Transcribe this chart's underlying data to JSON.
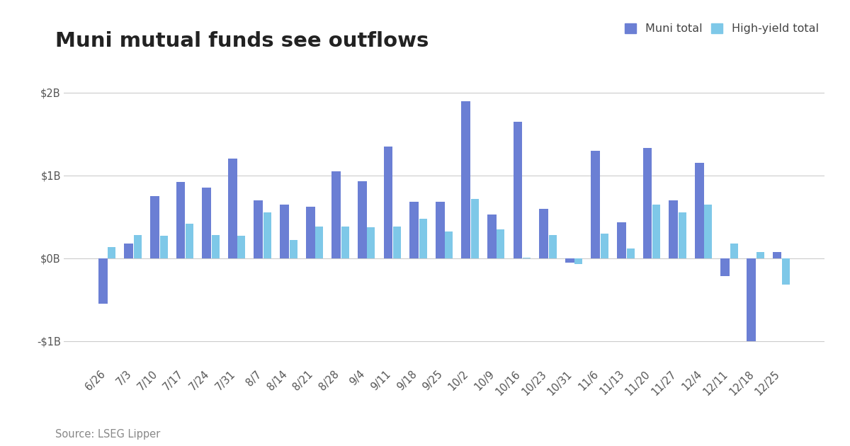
{
  "title": "Muni mutual funds see outflows",
  "source": "Source: LSEG Lipper",
  "legend_labels": [
    "Muni total",
    "High-yield total"
  ],
  "muni_color": "#6B7FD4",
  "hy_color": "#7EC8E8",
  "background_color": "#ffffff",
  "categories": [
    "6/26",
    "7/3",
    "7/10",
    "7/17",
    "7/24",
    "7/31",
    "8/7",
    "8/14",
    "8/21",
    "8/28",
    "9/4",
    "9/11",
    "9/18",
    "9/25",
    "10/2",
    "10/9",
    "10/16",
    "10/23",
    "10/31",
    "11/6",
    "11/13",
    "11/20",
    "11/27",
    "12/4",
    "12/11",
    "12/18",
    "12/25"
  ],
  "muni_values": [
    -0.55,
    0.18,
    0.75,
    0.92,
    0.85,
    1.2,
    0.7,
    0.65,
    0.62,
    1.05,
    0.93,
    1.35,
    0.68,
    0.68,
    1.9,
    0.53,
    1.65,
    0.6,
    -0.05,
    1.3,
    0.43,
    1.33,
    0.7,
    1.15,
    -0.22,
    -1.0,
    0.07
  ],
  "hy_values": [
    0.13,
    0.28,
    0.27,
    0.42,
    0.28,
    0.27,
    0.55,
    0.22,
    0.38,
    0.38,
    0.37,
    0.38,
    0.48,
    0.32,
    0.72,
    0.35,
    0.01,
    0.28,
    -0.07,
    0.3,
    0.12,
    0.65,
    0.55,
    0.65,
    0.18,
    0.07,
    -0.32
  ],
  "ylim": [
    -1.3,
    2.15
  ],
  "yticks": [
    -1.0,
    0.0,
    1.0,
    2.0
  ],
  "ytick_labels": [
    "-$1B",
    "$0B",
    "$1B",
    "$2B"
  ],
  "grid_color": "#cccccc",
  "muni_bar_width": 0.35,
  "hy_bar_width": 0.3,
  "title_fontsize": 21,
  "tick_fontsize": 10.5,
  "legend_fontsize": 11.5,
  "source_fontsize": 10.5
}
